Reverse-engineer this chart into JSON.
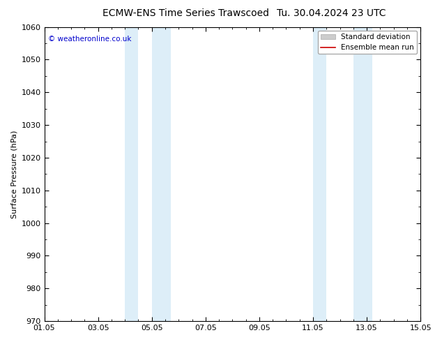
{
  "title_left": "ECMW-ENS Time Series Trawscoed",
  "title_right": "Tu. 30.04.2024 23 UTC",
  "ylabel": "Surface Pressure (hPa)",
  "ylim": [
    970,
    1060
  ],
  "yticks": [
    970,
    980,
    990,
    1000,
    1010,
    1020,
    1030,
    1040,
    1050,
    1060
  ],
  "xlim_start": 0,
  "xlim_end": 14,
  "xtick_positions": [
    0,
    2,
    4,
    6,
    8,
    10,
    12,
    14
  ],
  "xtick_labels": [
    "01.05",
    "03.05",
    "05.05",
    "07.05",
    "09.05",
    "11.05",
    "13.05",
    "15.05"
  ],
  "shaded_regions": [
    {
      "xmin": 3.0,
      "xmax": 3.5
    },
    {
      "xmin": 4.0,
      "xmax": 4.7
    },
    {
      "xmin": 10.0,
      "xmax": 10.5
    },
    {
      "xmin": 11.5,
      "xmax": 12.2
    }
  ],
  "shade_color": "#ddeef8",
  "background_color": "#ffffff",
  "plot_bg_color": "#ffffff",
  "watermark": "© weatheronline.co.uk",
  "watermark_color": "#0000cc",
  "legend_std_color": "#cccccc",
  "legend_mean_color": "#cc0000",
  "title_fontsize": 10,
  "tick_fontsize": 8,
  "ylabel_fontsize": 8
}
